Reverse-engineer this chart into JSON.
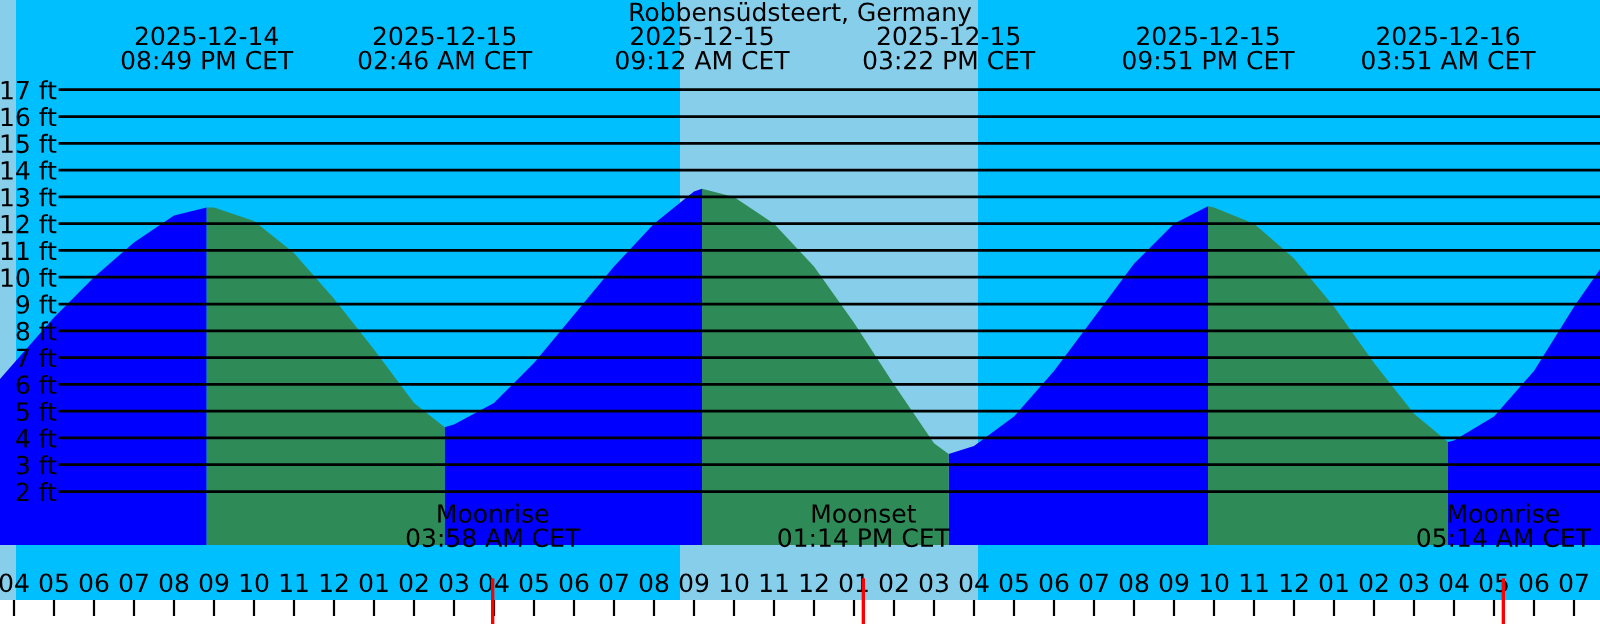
{
  "chart_data": {
    "type": "area",
    "title": "Robbensüdsteert, Germany",
    "series": [
      {
        "color": "#0000ff",
        "x": [
          "2025-12-14T15:39",
          "2025-12-14T16:00",
          "2025-12-14T17:00",
          "2025-12-14T18:00",
          "2025-12-14T19:00",
          "2025-12-14T20:00",
          "2025-12-14T20:49",
          "2025-12-15T00:00",
          "2025-12-15T02:46",
          "2025-12-15T03:00",
          "2025-12-15T04:00",
          "2025-12-15T05:00",
          "2025-12-15T06:00",
          "2025-12-15T07:00",
          "2025-12-15T08:00",
          "2025-12-15T09:00",
          "2025-12-15T09:12",
          "2025-12-15T12:00",
          "2025-12-15T15:22",
          "2025-12-15T16:00",
          "2025-12-15T17:00",
          "2025-12-15T18:00",
          "2025-12-15T19:00",
          "2025-12-15T20:00",
          "2025-12-15T21:00",
          "2025-12-15T21:51",
          "2025-12-16T01:00",
          "2025-12-16T03:51",
          "2025-12-16T04:00",
          "2025-12-16T05:00",
          "2025-12-16T06:00",
          "2025-12-16T07:00",
          "2025-12-16T07:39"
        ],
        "values": [
          6.2,
          6.8,
          8.5,
          10.0,
          11.3,
          12.3,
          12.6,
          null,
          4.4,
          4.5,
          5.3,
          6.8,
          8.6,
          10.4,
          12.0,
          13.2,
          13.3,
          null,
          3.4,
          3.7,
          4.8,
          6.5,
          8.5,
          10.5,
          12.0,
          12.65,
          null,
          3.85,
          3.9,
          4.8,
          6.5,
          8.9,
          10.3
        ]
      },
      {
        "color": "#2e8b57",
        "x": [
          "2025-12-14T20:49",
          "2025-12-14T21:00",
          "2025-12-14T22:00",
          "2025-12-14T23:00",
          "2025-12-15T00:00",
          "2025-12-15T01:00",
          "2025-12-15T02:00",
          "2025-12-15T02:46",
          "2025-12-15T06:00",
          "2025-12-15T09:12",
          "2025-12-15T10:00",
          "2025-12-15T11:00",
          "2025-12-15T12:00",
          "2025-12-15T13:00",
          "2025-12-15T14:00",
          "2025-12-15T15:00",
          "2025-12-15T15:22",
          "2025-12-15T18:00",
          "2025-12-15T21:51",
          "2025-12-15T22:00",
          "2025-12-15T23:00",
          "2025-12-16T00:00",
          "2025-12-16T01:00",
          "2025-12-16T02:00",
          "2025-12-16T03:00",
          "2025-12-16T03:51"
        ],
        "values": [
          12.6,
          12.6,
          12.1,
          10.9,
          9.2,
          7.3,
          5.3,
          4.4,
          null,
          13.3,
          13.0,
          12.0,
          10.4,
          8.3,
          6.0,
          3.8,
          3.4,
          null,
          12.65,
          12.6,
          12.0,
          10.7,
          8.9,
          6.8,
          4.9,
          3.85
        ]
      }
    ],
    "xlim": [
      "2025-12-14T15:39",
      "2025-12-16T07:39"
    ],
    "xticks": [
      {
        "value": "2025-12-14T16:00",
        "label": "04"
      },
      {
        "value": "2025-12-14T17:00",
        "label": "05"
      },
      {
        "value": "2025-12-14T18:00",
        "label": "06"
      },
      {
        "value": "2025-12-14T19:00",
        "label": "07"
      },
      {
        "value": "2025-12-14T20:00",
        "label": "08"
      },
      {
        "value": "2025-12-14T21:00",
        "label": "09"
      },
      {
        "value": "2025-12-14T22:00",
        "label": "10"
      },
      {
        "value": "2025-12-14T23:00",
        "label": "11"
      },
      {
        "value": "2025-12-15T00:00",
        "label": "12"
      },
      {
        "value": "2025-12-15T01:00",
        "label": "01"
      },
      {
        "value": "2025-12-15T02:00",
        "label": "02"
      },
      {
        "value": "2025-12-15T03:00",
        "label": "03"
      },
      {
        "value": "2025-12-15T04:00",
        "label": "04"
      },
      {
        "value": "2025-12-15T05:00",
        "label": "05"
      },
      {
        "value": "2025-12-15T06:00",
        "label": "06"
      },
      {
        "value": "2025-12-15T07:00",
        "label": "07"
      },
      {
        "value": "2025-12-15T08:00",
        "label": "08"
      },
      {
        "value": "2025-12-15T09:00",
        "label": "09"
      },
      {
        "value": "2025-12-15T10:00",
        "label": "10"
      },
      {
        "value": "2025-12-15T11:00",
        "label": "11"
      },
      {
        "value": "2025-12-15T12:00",
        "label": "12"
      },
      {
        "value": "2025-12-15T13:00",
        "label": "01"
      },
      {
        "value": "2025-12-15T14:00",
        "label": "02"
      },
      {
        "value": "2025-12-15T15:00",
        "label": "03"
      },
      {
        "value": "2025-12-15T16:00",
        "label": "04"
      },
      {
        "value": "2025-12-15T17:00",
        "label": "05"
      },
      {
        "value": "2025-12-15T18:00",
        "label": "06"
      },
      {
        "value": "2025-12-15T19:00",
        "label": "07"
      },
      {
        "value": "2025-12-15T20:00",
        "label": "08"
      },
      {
        "value": "2025-12-15T21:00",
        "label": "09"
      },
      {
        "value": "2025-12-15T22:00",
        "label": "10"
      },
      {
        "value": "2025-12-15T23:00",
        "label": "11"
      },
      {
        "value": "2025-12-16T00:00",
        "label": "12"
      },
      {
        "value": "2025-12-16T01:00",
        "label": "01"
      },
      {
        "value": "2025-12-16T02:00",
        "label": "02"
      },
      {
        "value": "2025-12-16T03:00",
        "label": "03"
      },
      {
        "value": "2025-12-16T04:00",
        "label": "04"
      },
      {
        "value": "2025-12-16T05:00",
        "label": "05"
      },
      {
        "value": "2025-12-16T06:00",
        "label": "06"
      },
      {
        "value": "2025-12-16T07:00",
        "label": "07"
      }
    ],
    "ylim": [
      -2.05,
      20.35
    ],
    "yticks": [
      {
        "value": 2,
        "label": "2 ft"
      },
      {
        "value": 3,
        "label": "3 ft"
      },
      {
        "value": 4,
        "label": "4 ft"
      },
      {
        "value": 5,
        "label": "5 ft"
      },
      {
        "value": 6,
        "label": "6 ft"
      },
      {
        "value": 7,
        "label": "7 ft"
      },
      {
        "value": 8,
        "label": "8 ft"
      },
      {
        "value": 9,
        "label": "9 ft"
      },
      {
        "value": 10,
        "label": "10 ft"
      },
      {
        "value": 11,
        "label": "11 ft"
      },
      {
        "value": 12,
        "label": "12 ft"
      },
      {
        "value": 13,
        "label": "13 ft"
      },
      {
        "value": 14,
        "label": "14 ft"
      },
      {
        "value": 15,
        "label": "15 ft"
      },
      {
        "value": 16,
        "label": "16 ft"
      },
      {
        "value": 17,
        "label": "17 ft"
      }
    ],
    "grid": "y",
    "bands": [
      {
        "axis": "x",
        "from": "2025-12-14T15:39",
        "to": "2025-12-14T16:03",
        "color": "#87ceeb"
      },
      {
        "axis": "x",
        "from": "2025-12-15T08:39",
        "to": "2025-12-15T16:06",
        "color": "#87ceeb"
      }
    ],
    "ref_lines": [
      {
        "axis": "x",
        "value": "2025-12-15T03:58",
        "label": "Moonrise\n03:58 AM CET",
        "color": "#ff0000"
      },
      {
        "axis": "x",
        "value": "2025-12-15T13:14",
        "label": "Moonset\n01:14 PM CET",
        "color": "#ff0000"
      },
      {
        "axis": "x",
        "value": "2025-12-16T05:14",
        "label": "Moonrise\n05:14 AM CET",
        "color": "#ff0000"
      }
    ],
    "annotations": [
      "2025-12-14\n08:49 PM CET",
      "2025-12-15\n02:46 AM CET",
      "2025-12-15\n09:12 AM CET",
      "2025-12-15\n03:22 PM CET",
      "2025-12-15\n09:51 PM CET",
      "2025-12-16\n03:51 AM CET"
    ]
  }
}
